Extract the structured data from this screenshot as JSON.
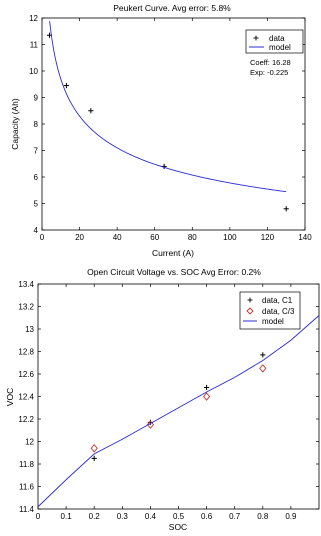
{
  "chart_data": [
    {
      "type": "scatter",
      "title": "Peukert Curve. Avg error: 5.8%",
      "xlabel": "Current (A)",
      "ylabel": "Capacity (Ah)",
      "xlim": [
        0,
        140
      ],
      "ylim": [
        4,
        12
      ],
      "xticks": [
        "0",
        "20",
        "40",
        "60",
        "80",
        "100",
        "120",
        "140"
      ],
      "yticks": [
        "4",
        "5",
        "6",
        "7",
        "8",
        "9",
        "10",
        "11",
        "12"
      ],
      "legend": {
        "placement": "top-right",
        "entries": [
          "data",
          "model"
        ]
      },
      "annotations": [
        "Coeff: 16.28",
        "Exp: -0.225"
      ],
      "colors": {
        "data": "#000000",
        "model": "#2b2bd4"
      },
      "series": [
        {
          "name": "data",
          "kind": "points",
          "x": [
            4,
            13,
            26,
            65,
            130
          ],
          "y": [
            11.35,
            9.45,
            8.5,
            6.4,
            4.8
          ]
        },
        {
          "name": "model",
          "kind": "line",
          "coeff": 16.28,
          "exp": -0.225,
          "domain": [
            3,
            130
          ]
        }
      ]
    },
    {
      "type": "scatter",
      "title": "Open Circuit Voltage vs. SOC Avg Error: 0.2%",
      "xlabel": "SOC",
      "ylabel": "VOC",
      "xlim": [
        0,
        1
      ],
      "ylim": [
        11.4,
        13.4
      ],
      "xticks": [
        "0",
        "0.1",
        "0.2",
        "0.3",
        "0.4",
        "0.5",
        "0.6",
        "0.7",
        "0.8",
        "0.9"
      ],
      "yticks": [
        "11.4",
        "11.6",
        "11.8",
        "12",
        "12.2",
        "12.4",
        "12.6",
        "12.8",
        "13",
        "13.2",
        "13.4"
      ],
      "legend": {
        "placement": "top-right",
        "entries": [
          "data, C1",
          "data, C/3",
          "model"
        ]
      },
      "colors": {
        "c1": "#000000",
        "c3": "#c4302b",
        "model": "#2b2bd4"
      },
      "series": [
        {
          "name": "data, C1",
          "kind": "plus",
          "x": [
            0.2,
            0.4,
            0.6,
            0.8
          ],
          "y": [
            11.85,
            12.17,
            12.48,
            12.77
          ]
        },
        {
          "name": "data, C/3",
          "kind": "diamond",
          "x": [
            0.2,
            0.4,
            0.6,
            0.8
          ],
          "y": [
            11.94,
            12.15,
            12.4,
            12.65
          ]
        },
        {
          "name": "model",
          "kind": "line",
          "x": [
            0,
            0.1,
            0.2,
            0.3,
            0.4,
            0.5,
            0.6,
            0.7,
            0.8,
            0.9,
            1.0
          ],
          "y": [
            11.42,
            11.66,
            11.89,
            12.02,
            12.16,
            12.3,
            12.44,
            12.57,
            12.72,
            12.9,
            13.12
          ]
        }
      ]
    }
  ]
}
